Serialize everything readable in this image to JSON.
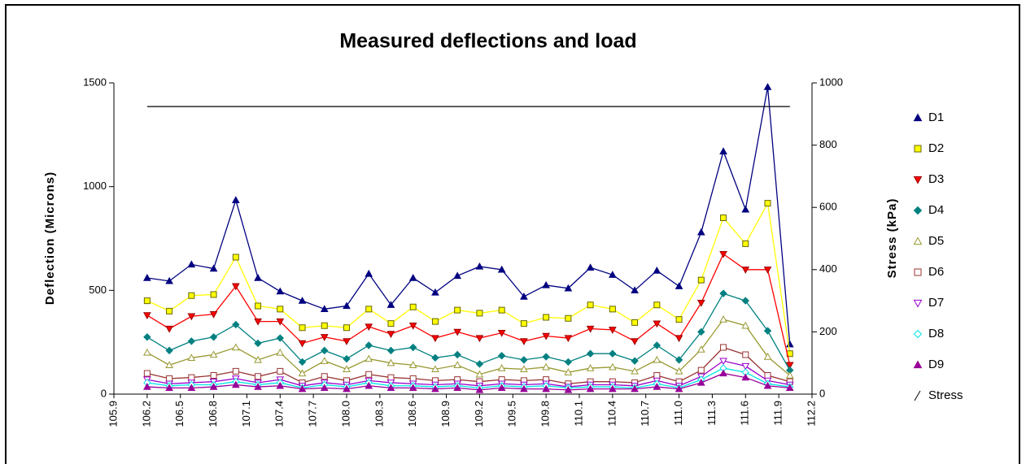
{
  "chart_data": {
    "type": "line",
    "title": "Measured deflections and load",
    "y_label": "Deflection (Microns)",
    "y2_label": "Stress (kPa)",
    "x": [
      106.2,
      106.4,
      106.6,
      106.8,
      107.0,
      107.2,
      107.4,
      107.6,
      107.8,
      108.0,
      108.2,
      108.4,
      108.6,
      108.8,
      109.0,
      109.2,
      109.4,
      109.6,
      109.8,
      110.0,
      110.2,
      110.4,
      110.6,
      110.8,
      111.0,
      111.2,
      111.4,
      111.6,
      111.8,
      112.0
    ],
    "xlim": [
      105.9,
      112.2
    ],
    "xticks": [
      105.9,
      106.2,
      106.5,
      106.8,
      107.1,
      107.4,
      107.7,
      {
        "value": 108,
        "label": "108.0"
      },
      108.3,
      108.6,
      108.9,
      109.2,
      109.5,
      109.8,
      110.1,
      110.4,
      110.7,
      {
        "value": 111,
        "label": "111.0"
      },
      111.3,
      111.6,
      111.9,
      112.2
    ],
    "ylim": [
      0,
      1500
    ],
    "yticks": [
      0,
      500,
      1000,
      1500
    ],
    "y2lim": [
      0,
      1000
    ],
    "y2ticks": [
      0,
      200,
      400,
      600,
      800,
      1000
    ],
    "series": [
      {
        "name": "D1",
        "color": "#000080",
        "marker": "triangle-up",
        "values": [
          560,
          545,
          625,
          605,
          935,
          560,
          495,
          450,
          410,
          425,
          580,
          430,
          560,
          490,
          570,
          615,
          600,
          470,
          525,
          510,
          610,
          575,
          500,
          595,
          520,
          780,
          1170,
          890,
          1480,
          240
        ]
      },
      {
        "name": "D2",
        "color": "#ffff00",
        "marker": "square",
        "values": [
          450,
          400,
          475,
          480,
          660,
          425,
          410,
          320,
          330,
          320,
          410,
          340,
          420,
          350,
          405,
          390,
          405,
          340,
          370,
          365,
          430,
          410,
          345,
          430,
          360,
          550,
          850,
          725,
          920,
          195
        ]
      },
      {
        "name": "D3",
        "color": "#ff0000",
        "marker": "triangle-down",
        "values": [
          380,
          315,
          375,
          385,
          520,
          350,
          350,
          245,
          275,
          255,
          325,
          290,
          330,
          270,
          300,
          270,
          295,
          255,
          280,
          270,
          315,
          310,
          255,
          340,
          270,
          440,
          675,
          600,
          600,
          140
        ]
      },
      {
        "name": "D4",
        "color": "#008080",
        "marker": "diamond",
        "values": [
          275,
          210,
          255,
          275,
          335,
          245,
          270,
          155,
          210,
          170,
          235,
          210,
          225,
          175,
          190,
          145,
          185,
          165,
          180,
          155,
          195,
          195,
          160,
          235,
          165,
          300,
          485,
          450,
          305,
          115
        ]
      },
      {
        "name": "D5",
        "color": "#999933",
        "marker": "triangle-up-open",
        "values": [
          200,
          140,
          175,
          190,
          225,
          165,
          200,
          100,
          160,
          120,
          170,
          150,
          140,
          120,
          140,
          95,
          125,
          120,
          130,
          105,
          125,
          130,
          110,
          165,
          110,
          215,
          360,
          330,
          180,
          90
        ]
      },
      {
        "name": "D6",
        "color": "#993333",
        "marker": "square-open",
        "values": [
          100,
          75,
          80,
          90,
          110,
          85,
          110,
          55,
          85,
          65,
          95,
          80,
          75,
          65,
          70,
          60,
          70,
          65,
          70,
          50,
          60,
          60,
          55,
          90,
          60,
          115,
          225,
          190,
          90,
          60
        ]
      },
      {
        "name": "D7",
        "color": "#9900cc",
        "marker": "triangle-down-open",
        "values": [
          70,
          50,
          55,
          60,
          75,
          55,
          70,
          40,
          55,
          45,
          65,
          55,
          50,
          45,
          50,
          40,
          50,
          45,
          50,
          35,
          45,
          45,
          40,
          65,
          40,
          85,
          160,
          135,
          65,
          45
        ]
      },
      {
        "name": "D8",
        "color": "#00e5e5",
        "marker": "diamond-open",
        "values": [
          55,
          40,
          45,
          45,
          60,
          45,
          55,
          30,
          45,
          35,
          55,
          40,
          40,
          35,
          40,
          30,
          40,
          35,
          40,
          30,
          35,
          35,
          30,
          50,
          30,
          70,
          125,
          105,
          50,
          35
        ]
      },
      {
        "name": "D9",
        "color": "#990099",
        "marker": "triangle-up",
        "values": [
          35,
          30,
          30,
          35,
          45,
          35,
          40,
          25,
          30,
          25,
          40,
          30,
          30,
          25,
          30,
          20,
          30,
          25,
          25,
          20,
          25,
          25,
          25,
          35,
          25,
          55,
          100,
          80,
          40,
          30
        ]
      },
      {
        "name": "Stress",
        "color": "#000000",
        "marker": "none",
        "axis": "y2",
        "values": [
          924,
          924,
          924,
          924,
          924,
          924,
          924,
          924,
          924,
          924,
          924,
          924,
          924,
          924,
          924,
          924,
          924,
          924,
          924,
          924,
          924,
          924,
          924,
          924,
          924,
          924,
          924,
          924,
          924,
          924
        ]
      }
    ],
    "legend": "right"
  }
}
